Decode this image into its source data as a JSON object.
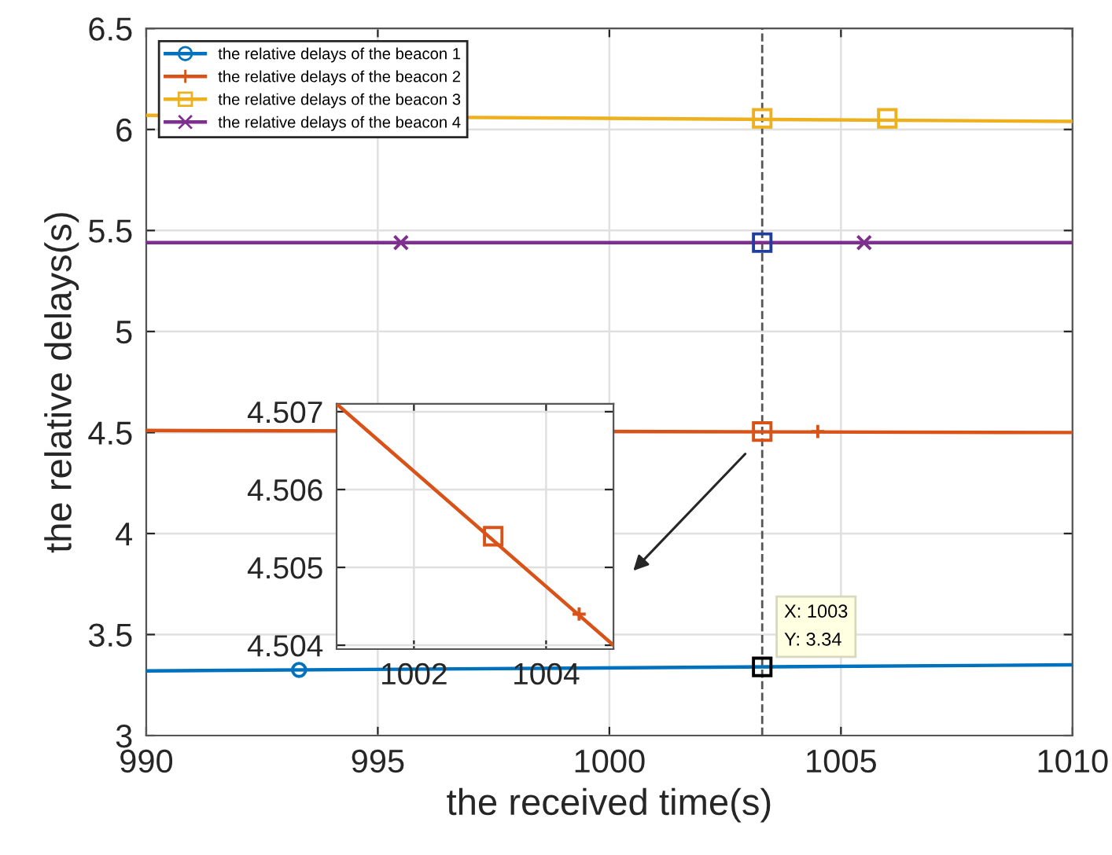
{
  "chart_data": [
    {
      "type": "line",
      "xlabel": "the received time(s)",
      "ylabel": "the relative delays(s)",
      "xlim": [
        990,
        1010
      ],
      "xticks": [
        990,
        995,
        1000,
        1005,
        1010
      ],
      "ylim": [
        3,
        6.5
      ],
      "yticks": [
        3,
        3.5,
        4,
        4.5,
        5,
        5.5,
        6,
        6.5
      ],
      "grid": true,
      "legend": "top left",
      "series": [
        {
          "name": "the relative delays of the beacon 1",
          "color": "#0072bd",
          "x": [
            990,
            1010
          ],
          "values": [
            3.32,
            3.35
          ]
        },
        {
          "name": "the relative delays of the beacon 2",
          "color": "#d95319",
          "x": [
            990,
            1010
          ],
          "values": [
            4.51,
            4.5
          ]
        },
        {
          "name": "the relative delays of the beacon 3",
          "color": "#edb120",
          "x": [
            990,
            1010
          ],
          "values": [
            6.07,
            6.04
          ]
        },
        {
          "name": "the relative delays of the beacon 4",
          "color": "#7e2f8e",
          "x": [
            990,
            1010
          ],
          "values": [
            5.44,
            5.44
          ]
        },
        {
          "type": "scatter",
          "color": "#0072bd",
          "marker": "circle",
          "x": [
            993.3
          ],
          "values": [
            3.325
          ]
        },
        {
          "type": "scatter",
          "color": "#d95319",
          "marker": "plus",
          "x": [
            1004.5
          ],
          "values": [
            4.505
          ]
        },
        {
          "type": "scatter",
          "color": "#edb120",
          "marker": "square",
          "x": [
            1006.0
          ],
          "values": [
            6.055
          ]
        },
        {
          "type": "scatter",
          "color": "#7e2f8e",
          "marker": "cross",
          "x": [
            995.5,
            1005.5
          ],
          "values": [
            5.44,
            5.44
          ]
        },
        {
          "type": "scatter",
          "color": "#d95319",
          "marker": "square",
          "x": [
            1003.3
          ],
          "values": [
            4.505
          ]
        },
        {
          "type": "scatter",
          "color": "#edb120",
          "marker": "square",
          "x": [
            1003.3
          ],
          "values": [
            6.055
          ]
        },
        {
          "type": "scatter",
          "color": "#1f3f9f",
          "marker": "square",
          "x": [
            1003.3
          ],
          "values": [
            5.44
          ]
        },
        {
          "type": "scatter",
          "color": "#000000",
          "marker": "square",
          "x": [
            1003.3
          ],
          "values": [
            3.34
          ]
        }
      ],
      "ref_lines": [
        {
          "axis": "x",
          "value": 1003.3,
          "color": "#555555",
          "line_style": "dashed"
        }
      ],
      "annotations": [
        {
          "text": "X: 1003\nY: 3.34",
          "x": 1003.3,
          "y": 3.34
        }
      ]
    },
    {
      "type": "line",
      "xlim": [
        1000.83,
        1005.02
      ],
      "xticks": [
        1002,
        1004
      ],
      "ylim": [
        4.50395,
        4.5071
      ],
      "yticks": [
        4.504,
        4.505,
        4.506,
        4.507
      ],
      "grid": true,
      "series": [
        {
          "color": "#d95319",
          "x": [
            1000.83,
            1005.02
          ],
          "values": [
            4.5071,
            4.504
          ]
        },
        {
          "type": "scatter",
          "color": "#d95319",
          "marker": "square",
          "x": [
            1003.2
          ],
          "values": [
            4.5054
          ]
        },
        {
          "type": "scatter",
          "color": "#d95319",
          "marker": "plus",
          "x": [
            1004.5
          ],
          "values": [
            4.5044
          ]
        }
      ]
    }
  ]
}
